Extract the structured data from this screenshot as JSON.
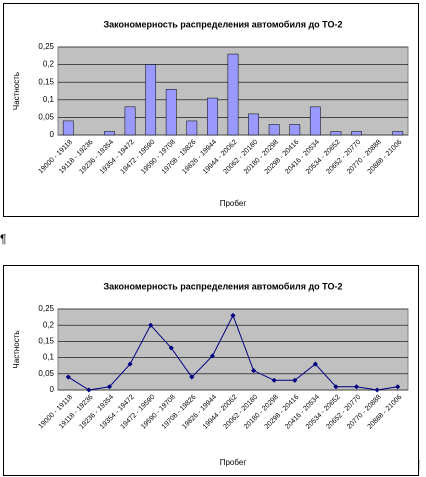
{
  "chart_data": [
    {
      "type": "bar",
      "title": "Закономерность распределения автомобиля до ТО-2",
      "x_label": "Пробег",
      "y_label": "Частность",
      "categories": [
        "19000 - 19118",
        "19118 - 19236",
        "19236 - 19354",
        "19354 - 19472",
        "19472 - 19590",
        "19590 - 19708",
        "19708 - 19826",
        "19826 - 19944",
        "19944 - 20062",
        "20062 - 20180",
        "20180 - 20298",
        "20298 - 20416",
        "20416 - 20534",
        "20534 - 20652",
        "20652 - 20770",
        "20770 - 20888",
        "20888 - 21006"
      ],
      "values": [
        0.04,
        0,
        0.01,
        0.08,
        0.2,
        0.13,
        0.04,
        0.105,
        0.23,
        0.06,
        0.03,
        0.03,
        0.08,
        0.01,
        0.01,
        0,
        0.01
      ],
      "color": "#9999ff",
      "ylim": [
        0,
        0.25
      ],
      "yticks": [
        {
          "value": 0,
          "label": "0"
        },
        {
          "value": 0.05,
          "label": "0,05"
        },
        {
          "value": 0.1,
          "label": "0,1"
        },
        {
          "value": 0.15,
          "label": "0,15"
        },
        {
          "value": 0.2,
          "label": "0,2"
        },
        {
          "value": 0.25,
          "label": "0,25"
        }
      ],
      "grid": true
    },
    {
      "type": "line",
      "title": "Закономерность распределения автомобиля до ТО-2",
      "x_label": "Пробег",
      "y_label": "Частность",
      "categories": [
        "19000 - 19118",
        "19118 - 19236",
        "19236 - 19354",
        "19354 - 19472",
        "19472 - 19590",
        "19590 - 19708",
        "19708 - 19826",
        "19826 - 19944",
        "19944 - 20062",
        "20062 - 20180",
        "20180 - 20298",
        "20298 - 20416",
        "20416 - 20534",
        "20534 - 20652",
        "20652 - 20770",
        "20770 - 20888",
        "20888 - 21006"
      ],
      "values": [
        0.04,
        0,
        0.01,
        0.08,
        0.2,
        0.13,
        0.04,
        0.105,
        0.23,
        0.06,
        0.03,
        0.03,
        0.08,
        0.01,
        0.01,
        0,
        0.01
      ],
      "color": "#000080",
      "ylim": [
        0,
        0.25
      ],
      "yticks": [
        {
          "value": 0,
          "label": "0"
        },
        {
          "value": 0.05,
          "label": "0,05"
        },
        {
          "value": 0.1,
          "label": "0,1"
        },
        {
          "value": 0.15,
          "label": "0,15"
        },
        {
          "value": 0.2,
          "label": "0,2"
        },
        {
          "value": 0.25,
          "label": "0,25"
        }
      ],
      "grid": true
    }
  ],
  "paragraph_marks": [
    "¶",
    "¶"
  ]
}
